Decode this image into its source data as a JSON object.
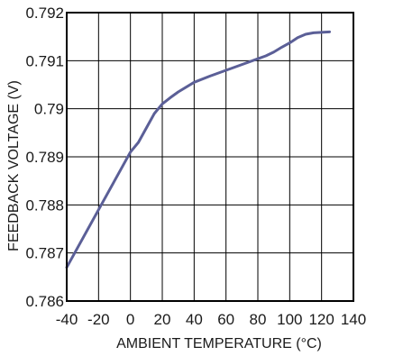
{
  "chart_data": {
    "type": "line",
    "title": "",
    "xlabel": "AMBIENT TEMPERATURE (°C)",
    "ylabel": "FEEDBACK VOLTAGE (V)",
    "xlim": [
      -40,
      140
    ],
    "ylim": [
      0.786,
      0.792
    ],
    "x_ticks": [
      -40,
      -20,
      0,
      20,
      40,
      60,
      80,
      100,
      120,
      140
    ],
    "x_tick_labels": [
      "-40",
      "-20",
      "0",
      "20",
      "40",
      "60",
      "80",
      "100",
      "120",
      "140"
    ],
    "y_ticks": [
      0.786,
      0.787,
      0.788,
      0.789,
      0.79,
      0.791,
      0.792
    ],
    "y_tick_labels": [
      "0.786",
      "0.787",
      "0.788",
      "0.789",
      "0.79",
      "0.791",
      "0.792"
    ],
    "grid": true,
    "legend": "none",
    "line_color": "#5b5f97",
    "series": [
      {
        "x": [
          -40,
          -30,
          -20,
          -10,
          0,
          5,
          10,
          15,
          20,
          25,
          30,
          40,
          50,
          60,
          70,
          80,
          85,
          90,
          95,
          100,
          105,
          110,
          115,
          120,
          125
        ],
        "y": [
          0.7867,
          0.7873,
          0.7879,
          0.7885,
          0.7891,
          0.7893,
          0.7896,
          0.7899,
          0.7901,
          0.79023,
          0.79035,
          0.79055,
          0.79068,
          0.7908,
          0.79092,
          0.79104,
          0.7911,
          0.79118,
          0.79128,
          0.79137,
          0.79148,
          0.79155,
          0.79158,
          0.79159,
          0.7916
        ]
      }
    ]
  }
}
